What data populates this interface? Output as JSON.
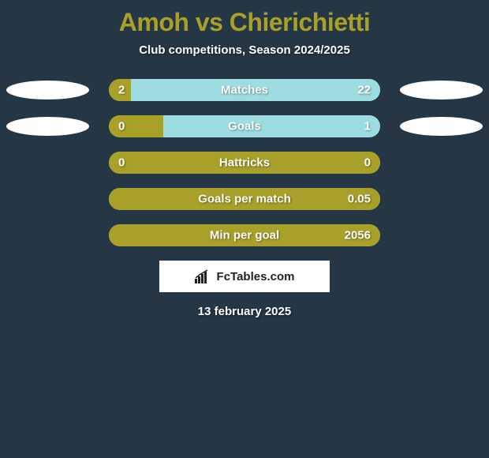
{
  "background_color": "#253645",
  "title": {
    "text": "Amoh vs Chierichietti",
    "color": "#a8a029"
  },
  "subtitle": "Club competitions, Season 2024/2025",
  "bar": {
    "track_color": "#a7c9a0",
    "left_color": "#a8a029",
    "right_color": "#9ddde1",
    "height": 28,
    "radius": 14
  },
  "oval": {
    "show_rows": [
      0,
      1
    ]
  },
  "rows": [
    {
      "label": "Matches",
      "left_val": "2",
      "right_val": "22",
      "left_pct": 8,
      "right_pct": 92
    },
    {
      "label": "Goals",
      "left_val": "0",
      "right_val": "1",
      "left_pct": 20,
      "right_pct": 80
    },
    {
      "label": "Hattricks",
      "left_val": "0",
      "right_val": "0",
      "left_pct": 100,
      "right_pct": 0
    },
    {
      "label": "Goals per match",
      "left_val": "",
      "right_val": "0.05",
      "left_pct": 100,
      "right_pct": 0
    },
    {
      "label": "Min per goal",
      "left_val": "",
      "right_val": "2056",
      "left_pct": 100,
      "right_pct": 0
    }
  ],
  "attribution": "FcTables.com",
  "date": "13 february 2025"
}
